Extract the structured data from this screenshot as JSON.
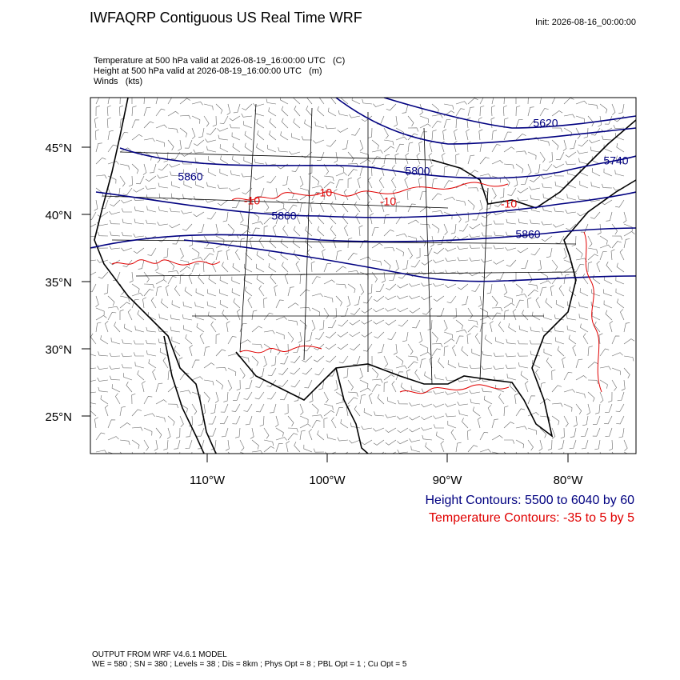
{
  "header": {
    "title": "IWFAQRP Contiguous US Real Time WRF",
    "init": "Init: 2026-08-16_00:00:00"
  },
  "fields": [
    "Temperature at 500 hPa valid at 2026-08-19_16:00:00 UTC   (C)",
    "Height at 500 hPa valid at 2026-08-19_16:00:00 UTC   (m)",
    "Winds   (kts)"
  ],
  "map": {
    "lat_labels": [
      "45°N",
      "40°N",
      "35°N",
      "30°N",
      "25°N"
    ],
    "lon_labels": [
      "110°W",
      "100°W",
      "90°W",
      "80°W"
    ],
    "height_labels": [
      "5620",
      "5740",
      "5800",
      "5860",
      "5860",
      "5860"
    ],
    "temp_labels": [
      "-10",
      "-10",
      "-10",
      "-10"
    ]
  },
  "legend": [
    "Height Contours: 5500 to 6040 by 60",
    "Temperature Contours: -35 to 5 by 5"
  ],
  "footer": [
    "OUTPUT FROM WRF V4.6.1 MODEL",
    "WE = 580 ; SN = 380 ; Levels = 38 ; Dis = 8km ; Phys Opt = 8 ; PBL Opt = 1 ; Cu Opt = 5"
  ]
}
